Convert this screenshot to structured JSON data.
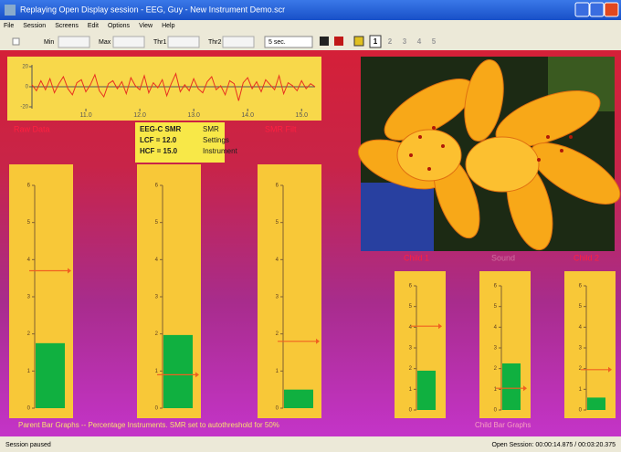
{
  "window": {
    "title": "Replaying Open Display session - EEG, Guy - New Instrument Demo.scr",
    "menu": [
      "File",
      "Session",
      "Screens",
      "Edit",
      "Options",
      "View",
      "Help"
    ],
    "toolbar": {
      "labels": [
        "Min",
        "Max",
        "Thr1",
        "Thr2"
      ],
      "duration": "5 sec.",
      "screens": [
        "1",
        "2",
        "3",
        "4",
        "5"
      ]
    }
  },
  "trace": {
    "values": [
      2,
      -4,
      6,
      -3,
      8,
      -6,
      3,
      10,
      -2,
      -8,
      4,
      7,
      -5,
      2,
      12,
      -4,
      -10,
      3,
      6,
      -2,
      5,
      -7,
      9,
      1,
      -3,
      11,
      -6,
      4,
      -1,
      7,
      -9,
      3,
      13,
      -5,
      2,
      -4,
      8,
      -2,
      -6,
      5,
      10,
      -3,
      1,
      -8,
      6,
      3,
      -14,
      4,
      9,
      -2,
      5,
      -5,
      7,
      2,
      -3,
      11,
      -7,
      4,
      1,
      -4,
      6,
      -2,
      3,
      0
    ],
    "xlim": [
      10.0,
      15.25
    ],
    "ylim": [
      -20,
      20
    ],
    "xticks": [
      {
        "value": 11,
        "label": "11.0"
      },
      {
        "value": 12,
        "label": "12.0"
      },
      {
        "value": 13,
        "label": "13.0"
      },
      {
        "value": 14,
        "label": "14.0"
      },
      {
        "value": 15,
        "label": "15.0"
      }
    ],
    "yticks": [
      20,
      0,
      -20
    ],
    "color": "#e83020"
  },
  "labels": {
    "left": "Raw Data",
    "right": "SMR Filt",
    "photo": [
      "Child 1",
      "Sound",
      "Child 2"
    ]
  },
  "info": {
    "rows": [
      [
        "EEG-C SMR",
        "SMR"
      ],
      [
        "LCF = 12.0",
        "Settings"
      ],
      [
        "HCF = 15.0",
        "Instrument"
      ]
    ]
  },
  "scale": {
    "ylim": [
      0,
      6
    ],
    "yticks": [
      0,
      1,
      2,
      3,
      4,
      5,
      6
    ]
  },
  "parent_bars": [
    {
      "value": 1.75,
      "threshold": 3.7
    },
    {
      "value": 1.97,
      "threshold": 0.9
    },
    {
      "value": 0.5,
      "threshold": 1.8
    }
  ],
  "child_bars": [
    {
      "value": 1.9,
      "threshold": 4.05
    },
    {
      "value": 2.25,
      "threshold": 1.05
    },
    {
      "value": 0.6,
      "threshold": 1.95
    }
  ],
  "bar_color": "#10b040",
  "threshold_color": "#f06020",
  "captions": {
    "parent": "Parent Bar Graphs -- Percentage Instruments. SMR set to autothreshold for 50%",
    "child": "Child Bar Graphs"
  },
  "status": {
    "left": "Session paused",
    "right": "Open Session: 00:00:14.875 / 00:03:20.375"
  }
}
